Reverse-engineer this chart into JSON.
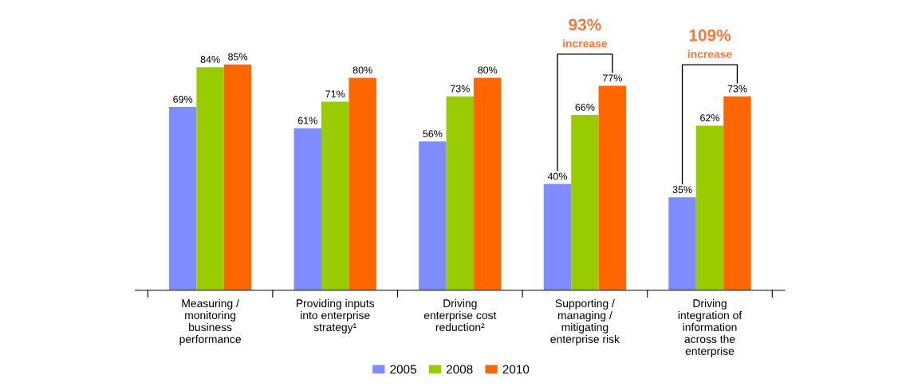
{
  "chart_data": {
    "type": "bar",
    "categories": [
      "Measuring / monitoring business performance",
      "Providing inputs into enterprise strategy¹",
      "Driving enterprise cost reduction²",
      "Supporting / managing / mitigating enterprise risk",
      "Driving integration of information across the enterprise"
    ],
    "series": [
      {
        "name": "2005",
        "color": "#7f8cff",
        "values": [
          69,
          61,
          56,
          40,
          35
        ],
        "value_labels": [
          "69%",
          "61%",
          "56%",
          "40%",
          "35%"
        ]
      },
      {
        "name": "2008",
        "color": "#99cc00",
        "values": [
          84,
          71,
          73,
          66,
          62
        ],
        "value_labels": [
          "84%",
          "71%",
          "73%",
          "66%",
          "62%"
        ]
      },
      {
        "name": "2010",
        "color": "#ff6600",
        "values": [
          85,
          80,
          80,
          77,
          73
        ],
        "value_labels": [
          "85%",
          "80%",
          "80%",
          "77%",
          "73%"
        ]
      }
    ],
    "annotations": [
      "93%\nincrease",
      "109%\nincrease"
    ],
    "legend": "bottom"
  }
}
